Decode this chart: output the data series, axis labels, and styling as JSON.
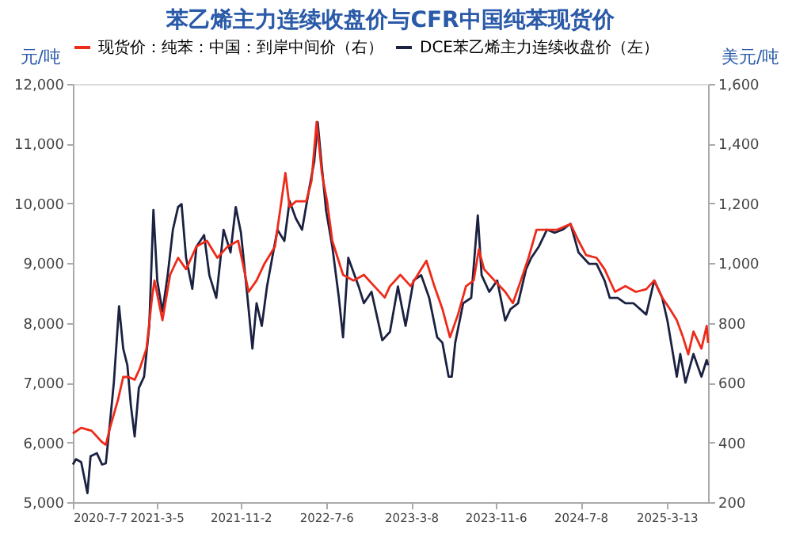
{
  "chart_data": {
    "type": "line",
    "title": "苯乙烯主力连续收盘价与CFR中国纯苯现货价",
    "ylabel": "元/吨",
    "y2label": "美元/吨",
    "xlim": [
      "2020-07-07",
      "2025-07-10"
    ],
    "xticks": [
      {
        "value": "2020-07-07",
        "label": "2020-7-7"
      },
      {
        "value": "2021-03-05",
        "label": "2021-3-5"
      },
      {
        "value": "2021-11-02",
        "label": "2021-11-2"
      },
      {
        "value": "2022-07-06",
        "label": "2022-7-6"
      },
      {
        "value": "2023-03-08",
        "label": "2023-3-8"
      },
      {
        "value": "2023-11-06",
        "label": "2023-11-6"
      },
      {
        "value": "2024-07-08",
        "label": "2024-7-8"
      },
      {
        "value": "2025-03-13",
        "label": "2025-3-13"
      }
    ],
    "ylim": [
      5000,
      12000
    ],
    "yticks": [
      {
        "value": 5000,
        "label": "5,000"
      },
      {
        "value": 6000,
        "label": "6,000"
      },
      {
        "value": 7000,
        "label": "7,000"
      },
      {
        "value": 8000,
        "label": "8,000"
      },
      {
        "value": 9000,
        "label": "9,000"
      },
      {
        "value": 10000,
        "label": "10,000"
      },
      {
        "value": 11000,
        "label": "11,000"
      },
      {
        "value": 12000,
        "label": "12,000"
      }
    ],
    "y2lim": [
      200,
      1600
    ],
    "y2ticks": [
      {
        "value": 200,
        "label": "200"
      },
      {
        "value": 400,
        "label": "400"
      },
      {
        "value": 600,
        "label": "600"
      },
      {
        "value": 800,
        "label": "800"
      },
      {
        "value": 1000,
        "label": "1,000"
      },
      {
        "value": 1200,
        "label": "1,200"
      },
      {
        "value": 1400,
        "label": "1,400"
      },
      {
        "value": 1600,
        "label": "1,600"
      }
    ],
    "legend": "top",
    "grid": false,
    "marker": "none",
    "line_style": "solid",
    "series": [
      {
        "name": "现货价：纯苯：中国：到岸中间价（右）",
        "color": "#ee2a1a",
        "axis": "y2",
        "x": [
          "2020-07-07",
          "2020-07-31",
          "2020-08-30",
          "2020-09-29",
          "2020-10-10",
          "2020-10-22",
          "2020-11-14",
          "2020-11-29",
          "2020-12-14",
          "2021-01-01",
          "2021-01-16",
          "2021-02-04",
          "2021-02-20",
          "2021-02-27",
          "2021-03-22",
          "2021-04-13",
          "2021-05-06",
          "2021-05-29",
          "2021-06-28",
          "2021-07-28",
          "2021-08-27",
          "2021-09-26",
          "2021-10-26",
          "2021-11-25",
          "2021-12-18",
          "2022-01-10",
          "2022-02-09",
          "2022-03-11",
          "2022-03-23",
          "2022-04-10",
          "2022-05-10",
          "2022-05-25",
          "2022-06-09",
          "2022-06-24",
          "2022-07-09",
          "2022-07-24",
          "2022-08-24",
          "2022-09-23",
          "2022-10-23",
          "2022-11-22",
          "2022-12-22",
          "2023-01-06",
          "2023-02-05",
          "2023-03-07",
          "2023-04-06",
          "2023-04-21",
          "2023-05-14",
          "2023-06-06",
          "2023-06-28",
          "2023-07-21",
          "2023-08-13",
          "2023-09-04",
          "2023-09-19",
          "2023-10-04",
          "2023-11-03",
          "2023-12-04",
          "2023-12-26",
          "2024-01-18",
          "2024-02-09",
          "2024-03-03",
          "2024-04-02",
          "2024-05-02",
          "2024-06-09",
          "2024-07-02",
          "2024-07-24",
          "2024-08-23",
          "2024-09-15",
          "2024-10-15",
          "2024-11-14",
          "2024-12-14",
          "2025-01-13",
          "2025-02-05",
          "2025-02-28",
          "2025-03-22",
          "2025-04-11",
          "2025-04-29",
          "2025-05-14",
          "2025-05-29",
          "2025-06-21",
          "2025-07-06",
          "2025-07-10"
        ],
        "values": [
          430,
          449,
          439,
          401,
          392,
          449,
          543,
          619,
          619,
          610,
          648,
          714,
          885,
          942,
          809,
          961,
          1018,
          980,
          1056,
          1075,
          1018,
          1056,
          1075,
          904,
          942,
          999,
          1056,
          1302,
          1188,
          1207,
          1207,
          1274,
          1473,
          1302,
          1207,
          1075,
          961,
          942,
          961,
          923,
          885,
          923,
          961,
          923,
          980,
          1008,
          923,
          847,
          752,
          828,
          923,
          942,
          1046,
          980,
          942,
          904,
          866,
          942,
          1018,
          1112,
          1112,
          1112,
          1131,
          1075,
          1027,
          1018,
          980,
          904,
          923,
          904,
          913,
          942,
          885,
          847,
          809,
          752,
          695,
          771,
          714,
          790,
          733
        ]
      },
      {
        "name": "DCE苯乙烯主力连续收盘价（左）",
        "color": "#1b2140",
        "axis": "y",
        "x": [
          "2020-07-07",
          "2020-07-16",
          "2020-07-31",
          "2020-08-18",
          "2020-08-27",
          "2020-09-14",
          "2020-09-29",
          "2020-10-10",
          "2020-10-22",
          "2020-11-02",
          "2020-11-17",
          "2020-11-29",
          "2020-12-11",
          "2020-12-21",
          "2021-01-01",
          "2021-01-13",
          "2021-01-28",
          "2021-02-12",
          "2021-02-24",
          "2021-03-07",
          "2021-03-22",
          "2021-04-06",
          "2021-04-21",
          "2021-05-06",
          "2021-05-16",
          "2021-05-29",
          "2021-06-16",
          "2021-06-28",
          "2021-07-20",
          "2021-08-04",
          "2021-08-24",
          "2021-09-14",
          "2021-10-04",
          "2021-10-19",
          "2021-11-03",
          "2021-11-22",
          "2021-12-06",
          "2021-12-18",
          "2022-01-02",
          "2022-01-17",
          "2022-02-01",
          "2022-02-16",
          "2022-03-08",
          "2022-03-23",
          "2022-04-10",
          "2022-04-28",
          "2022-05-18",
          "2022-06-02",
          "2022-06-12",
          "2022-06-24",
          "2022-07-06",
          "2022-07-24",
          "2022-08-12",
          "2022-08-24",
          "2022-09-08",
          "2022-10-08",
          "2022-10-23",
          "2022-11-14",
          "2022-12-15",
          "2023-01-06",
          "2023-01-29",
          "2023-02-20",
          "2023-03-15",
          "2023-04-06",
          "2023-04-29",
          "2023-05-22",
          "2023-06-06",
          "2023-06-24",
          "2023-07-03",
          "2023-07-13",
          "2023-08-05",
          "2023-08-28",
          "2023-09-16",
          "2023-09-27",
          "2023-10-19",
          "2023-11-11",
          "2023-12-04",
          "2023-12-19",
          "2024-01-10",
          "2024-02-02",
          "2024-02-17",
          "2024-03-10",
          "2024-04-02",
          "2024-04-25",
          "2024-05-17",
          "2024-06-09",
          "2024-07-02",
          "2024-08-01",
          "2024-08-23",
          "2024-09-15",
          "2024-09-30",
          "2024-10-23",
          "2024-11-14",
          "2024-12-07",
          "2025-01-13",
          "2025-02-05",
          "2025-02-28",
          "2025-03-15",
          "2025-04-11",
          "2025-04-21",
          "2025-05-06",
          "2025-05-29",
          "2025-06-21",
          "2025-07-06",
          "2025-07-10"
        ],
        "values": [
          5630,
          5720,
          5670,
          5150,
          5770,
          5820,
          5630,
          5650,
          6340,
          7000,
          8280,
          7570,
          7290,
          6620,
          6100,
          6910,
          7100,
          7950,
          9890,
          8710,
          8190,
          8800,
          9560,
          9940,
          9990,
          9090,
          8570,
          9280,
          9470,
          8800,
          8420,
          9560,
          9180,
          9940,
          9510,
          8420,
          7570,
          8330,
          7950,
          8610,
          9090,
          9560,
          9370,
          10040,
          9750,
          9560,
          10230,
          10700,
          11360,
          10610,
          9890,
          9280,
          8420,
          7760,
          9090,
          8610,
          8330,
          8520,
          7710,
          7850,
          8610,
          7950,
          8710,
          8800,
          8420,
          7760,
          7670,
          7100,
          7100,
          7670,
          8330,
          8420,
          9800,
          8800,
          8520,
          8710,
          8040,
          8230,
          8330,
          8900,
          9090,
          9280,
          9560,
          9510,
          9560,
          9660,
          9180,
          8990,
          8990,
          8710,
          8420,
          8420,
          8330,
          8330,
          8140,
          8710,
          8420,
          8040,
          7100,
          7480,
          7000,
          7480,
          7100,
          7380,
          7290
        ]
      }
    ]
  }
}
